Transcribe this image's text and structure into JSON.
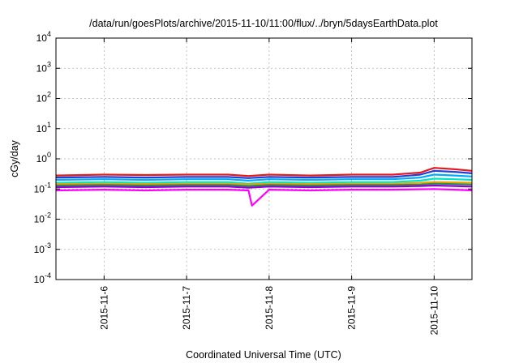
{
  "chart_data": {
    "type": "line",
    "title": "/data/run/goesPlots/archive/2015-11-10/11:00/flux/../bryn/5daysEarthData.plot",
    "xlabel": "Coordinated Universal Time (UTC)",
    "ylabel": "cGy/day",
    "x_range": [
      "2015-11-05T10:00",
      "2015-11-10T11:00"
    ],
    "ylim": [
      0.0001,
      10000
    ],
    "yscale": "log",
    "grid": true,
    "x_ticks": [
      {
        "label": "2015-11-6",
        "value": "2015-11-06T00:00"
      },
      {
        "label": "2015-11-7",
        "value": "2015-11-07T00:00"
      },
      {
        "label": "2015-11-8",
        "value": "2015-11-08T00:00"
      },
      {
        "label": "2015-11-9",
        "value": "2015-11-09T00:00"
      },
      {
        "label": "2015-11-10",
        "value": "2015-11-10T00:00"
      }
    ],
    "y_ticks": [
      {
        "base": "10",
        "exp": "4",
        "value": 10000
      },
      {
        "base": "10",
        "exp": "3",
        "value": 1000
      },
      {
        "base": "10",
        "exp": "2",
        "value": 100
      },
      {
        "base": "10",
        "exp": "1",
        "value": 10
      },
      {
        "base": "10",
        "exp": "0",
        "value": 1
      },
      {
        "base": "10",
        "exp": "-1",
        "value": 0.1
      },
      {
        "base": "10",
        "exp": "-2",
        "value": 0.01
      },
      {
        "base": "10",
        "exp": "-3",
        "value": 0.001
      },
      {
        "base": "10",
        "exp": "-4",
        "value": 0.0001
      }
    ],
    "series": [
      {
        "color": "#e41a1c",
        "x": [
          "2015-11-05T10:00",
          "2015-11-06T00:00",
          "2015-11-06T12:00",
          "2015-11-07T00:00",
          "2015-11-07T12:00",
          "2015-11-07T18:00",
          "2015-11-08T00:00",
          "2015-11-08T12:00",
          "2015-11-09T00:00",
          "2015-11-09T12:00",
          "2015-11-09T20:00",
          "2015-11-10T00:00",
          "2015-11-10T06:00",
          "2015-11-10T11:00"
        ],
        "values": [
          0.28,
          0.3,
          0.29,
          0.3,
          0.3,
          0.27,
          0.3,
          0.28,
          0.3,
          0.3,
          0.35,
          0.5,
          0.45,
          0.4
        ]
      },
      {
        "color": "#1f3fd6",
        "x": [
          "2015-11-05T10:00",
          "2015-11-06T00:00",
          "2015-11-06T12:00",
          "2015-11-07T00:00",
          "2015-11-07T12:00",
          "2015-11-07T18:00",
          "2015-11-08T00:00",
          "2015-11-08T12:00",
          "2015-11-09T00:00",
          "2015-11-09T12:00",
          "2015-11-09T20:00",
          "2015-11-10T00:00",
          "2015-11-10T06:00",
          "2015-11-10T11:00"
        ],
        "values": [
          0.24,
          0.25,
          0.24,
          0.25,
          0.25,
          0.23,
          0.25,
          0.24,
          0.25,
          0.25,
          0.3,
          0.4,
          0.37,
          0.33
        ]
      },
      {
        "color": "#00aaff",
        "x": [
          "2015-11-05T10:00",
          "2015-11-06T00:00",
          "2015-11-06T12:00",
          "2015-11-07T00:00",
          "2015-11-07T12:00",
          "2015-11-07T18:00",
          "2015-11-08T00:00",
          "2015-11-08T12:00",
          "2015-11-09T00:00",
          "2015-11-09T12:00",
          "2015-11-09T20:00",
          "2015-11-10T00:00",
          "2015-11-10T06:00",
          "2015-11-10T11:00"
        ],
        "values": [
          0.2,
          0.21,
          0.2,
          0.21,
          0.21,
          0.19,
          0.21,
          0.2,
          0.21,
          0.21,
          0.24,
          0.3,
          0.28,
          0.26
        ]
      },
      {
        "color": "#00e5c8",
        "x": [
          "2015-11-05T10:00",
          "2015-11-06T00:00",
          "2015-11-06T12:00",
          "2015-11-07T00:00",
          "2015-11-07T12:00",
          "2015-11-07T18:00",
          "2015-11-08T00:00",
          "2015-11-08T12:00",
          "2015-11-09T00:00",
          "2015-11-09T12:00",
          "2015-11-09T20:00",
          "2015-11-10T00:00",
          "2015-11-10T06:00",
          "2015-11-10T11:00"
        ],
        "values": [
          0.16,
          0.17,
          0.16,
          0.17,
          0.17,
          0.15,
          0.17,
          0.16,
          0.17,
          0.17,
          0.19,
          0.22,
          0.21,
          0.2
        ]
      },
      {
        "color": "#f0a000",
        "x": [
          "2015-11-05T10:00",
          "2015-11-06T00:00",
          "2015-11-06T12:00",
          "2015-11-07T00:00",
          "2015-11-07T12:00",
          "2015-11-07T18:00",
          "2015-11-08T00:00",
          "2015-11-08T12:00",
          "2015-11-09T00:00",
          "2015-11-09T12:00",
          "2015-11-09T20:00",
          "2015-11-10T00:00",
          "2015-11-10T06:00",
          "2015-11-10T11:00"
        ],
        "values": [
          0.145,
          0.15,
          0.145,
          0.15,
          0.15,
          0.14,
          0.15,
          0.145,
          0.15,
          0.15,
          0.16,
          0.17,
          0.165,
          0.16
        ]
      },
      {
        "color": "#2e8b57",
        "x": [
          "2015-11-05T10:00",
          "2015-11-06T00:00",
          "2015-11-06T12:00",
          "2015-11-07T00:00",
          "2015-11-07T12:00",
          "2015-11-07T18:00",
          "2015-11-08T00:00",
          "2015-11-08T12:00",
          "2015-11-09T00:00",
          "2015-11-09T12:00",
          "2015-11-09T20:00",
          "2015-11-10T00:00",
          "2015-11-10T06:00",
          "2015-11-10T11:00"
        ],
        "values": [
          0.13,
          0.135,
          0.13,
          0.135,
          0.135,
          0.125,
          0.135,
          0.13,
          0.135,
          0.135,
          0.14,
          0.15,
          0.145,
          0.14
        ]
      },
      {
        "color": "#9400d3",
        "x": [
          "2015-11-05T10:00",
          "2015-11-06T00:00",
          "2015-11-06T12:00",
          "2015-11-07T00:00",
          "2015-11-07T12:00",
          "2015-11-07T18:00",
          "2015-11-08T00:00",
          "2015-11-08T12:00",
          "2015-11-09T00:00",
          "2015-11-09T12:00",
          "2015-11-09T20:00",
          "2015-11-10T00:00",
          "2015-11-10T06:00",
          "2015-11-10T11:00"
        ],
        "values": [
          0.115,
          0.12,
          0.115,
          0.12,
          0.12,
          0.11,
          0.12,
          0.115,
          0.12,
          0.12,
          0.125,
          0.13,
          0.125,
          0.12
        ]
      },
      {
        "color": "#ff00ff",
        "x": [
          "2015-11-05T10:00",
          "2015-11-06T00:00",
          "2015-11-06T12:00",
          "2015-11-07T00:00",
          "2015-11-07T12:00",
          "2015-11-07T18:00",
          "2015-11-07T19:00",
          "2015-11-08T00:00",
          "2015-11-08T12:00",
          "2015-11-09T00:00",
          "2015-11-09T12:00",
          "2015-11-10T00:00",
          "2015-11-10T06:00",
          "2015-11-10T11:00"
        ],
        "values": [
          0.09,
          0.095,
          0.09,
          0.095,
          0.095,
          0.09,
          0.028,
          0.095,
          0.09,
          0.095,
          0.095,
          0.1,
          0.095,
          0.09
        ]
      }
    ]
  }
}
